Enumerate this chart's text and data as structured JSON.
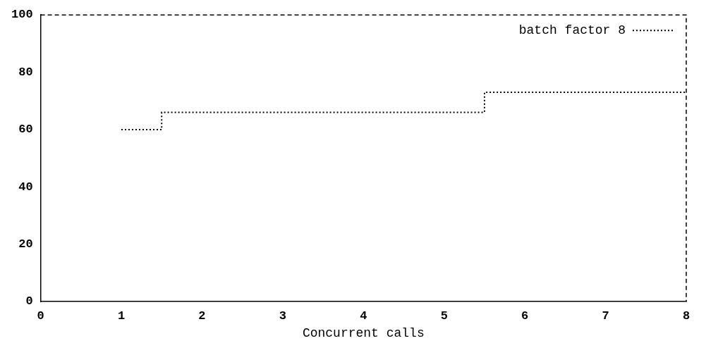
{
  "chart_data": {
    "type": "step",
    "xlabel": "Concurrent calls",
    "x": [
      1,
      2,
      3,
      4,
      5,
      6,
      7,
      8
    ],
    "series": [
      {
        "name": "batch factor 8",
        "color": "#000000",
        "values": [
          60,
          66,
          66,
          66,
          66,
          73,
          73,
          73
        ]
      }
    ],
    "xlim": [
      0,
      8
    ],
    "xticks": [
      0,
      1,
      2,
      3,
      4,
      5,
      6,
      7,
      8
    ],
    "ylim": [
      0,
      100
    ],
    "yticks": [
      0,
      20,
      40,
      60,
      80,
      100
    ],
    "grid": false,
    "legend": "top right",
    "line_style": "dotted"
  }
}
